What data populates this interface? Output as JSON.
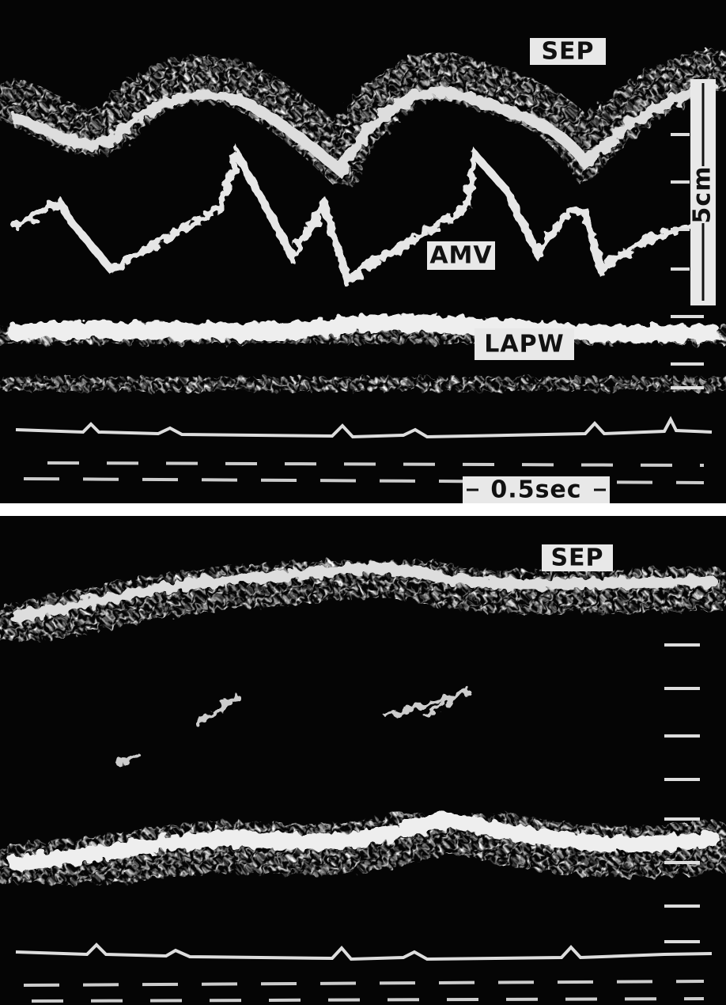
{
  "panels": [
    {
      "labels": [
        "SEP",
        "AMV",
        "LAPW"
      ],
      "vertical_scale": "5cm",
      "time_scale": "0.5sec"
    },
    {
      "labels": [
        "SEP"
      ]
    }
  ]
}
